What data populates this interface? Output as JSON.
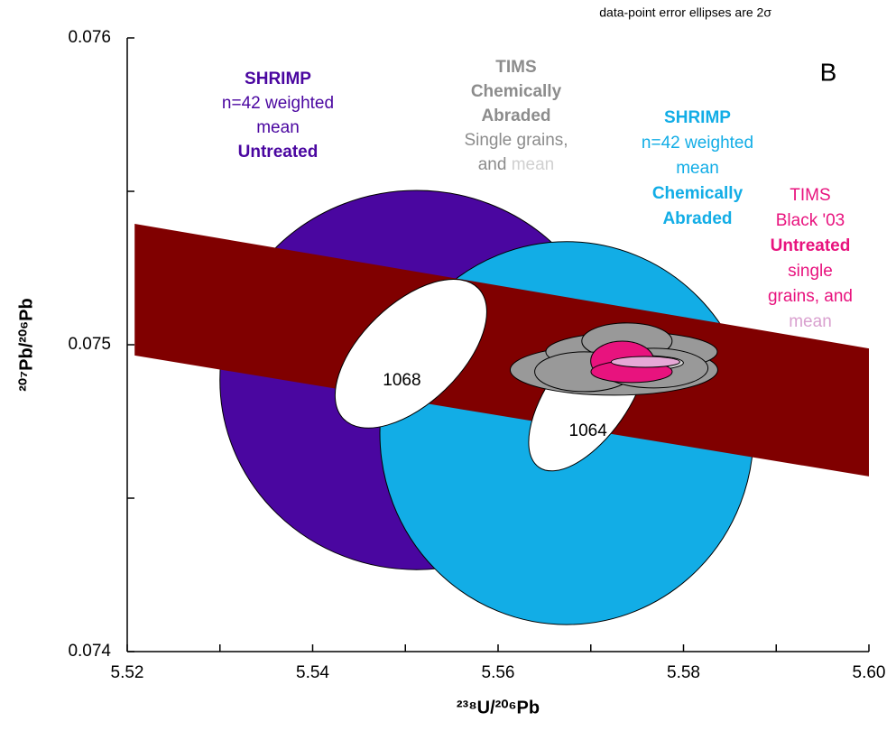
{
  "chart_data": {
    "type": "concordia",
    "note": "data-point error ellipses are 2σ",
    "panel": "B",
    "xlabel": "²³⁸U/²⁰⁶Pb",
    "ylabel": "²⁰⁷Pb/²⁰⁶Pb",
    "xlim": [
      5.52,
      5.6
    ],
    "ylim": [
      0.074,
      0.076
    ],
    "xticks": [
      5.52,
      5.54,
      5.56,
      5.58,
      {
        "value": 5.6,
        "label": "5.60"
      }
    ],
    "xminor_ticks": [
      5.53,
      5.55,
      5.57,
      5.59
    ],
    "yticks": [
      0.074,
      0.075,
      0.076
    ],
    "yminor_ticks": [
      0.0745,
      0.0755
    ],
    "band": {
      "color": "#800000",
      "x": [
        5.5208,
        5.6
      ],
      "upper": [
        0.075394,
        0.074988
      ],
      "lower": [
        0.074965,
        0.074571
      ]
    },
    "ellipses": [
      {
        "x": 5.5512,
        "y": 0.074885,
        "rx": 0.0212,
        "ry": 0.000618,
        "color": "#4a06a0"
      },
      {
        "x": 5.5674,
        "y": 0.074712,
        "rx": 0.02015,
        "ry": 0.000624,
        "color": "#12ade6"
      }
    ],
    "age_ellipses": [
      {
        "label": "1068",
        "x": 5.5506,
        "y": 0.074971,
        "rx": 0.01012,
        "ry": 0.000162,
        "angle": -44,
        "color": "#ffffff"
      },
      {
        "label": "1064",
        "x": 5.5697,
        "y": 0.07483,
        "rx": 0.00925,
        "ry": 0.000132,
        "angle": -55,
        "color": "#ffffff"
      }
    ],
    "grain_ellipses": [
      {
        "x": 5.5725,
        "y": 0.074918,
        "rx": 0.01119,
        "ry": 8.24e-05,
        "color": "#999999"
      },
      {
        "x": 5.5744,
        "y": 0.074977,
        "rx": 0.00925,
        "ry": 6.47e-05,
        "color": "#999999"
      },
      {
        "x": 5.5739,
        "y": 0.075012,
        "rx": 0.00487,
        "ry": 5.88e-05,
        "color": "#999999"
      },
      {
        "x": 5.5693,
        "y": 0.074912,
        "rx": 0.00535,
        "ry": 6.47e-05,
        "color": "#999999"
      },
      {
        "x": 5.5768,
        "y": 0.074924,
        "rx": 0.00584,
        "ry": 6.47e-05,
        "color": "#999999"
      },
      {
        "x": 5.5759,
        "y": 0.074941,
        "rx": 0.00409,
        "ry": 2.35e-05,
        "color": "#d0d0d0"
      },
      {
        "x": 5.5734,
        "y": 0.074947,
        "rx": 0.00341,
        "ry": 6.47e-05,
        "color": "#e8137e"
      },
      {
        "x": 5.5744,
        "y": 0.074912,
        "rx": 0.00438,
        "ry": 3.53e-05,
        "color": "#e8137e"
      },
      {
        "x": 5.5759,
        "y": 0.074944,
        "rx": 0.0037,
        "ry": 1.76e-05,
        "color": "#e6a8d6"
      }
    ],
    "annotations": [
      {
        "lines": [
          [
            {
              "text": "SHRIMP",
              "color": "#4a06a0",
              "bold": true
            }
          ],
          [
            {
              "text": "n=42 weighted",
              "color": "#4a06a0",
              "bold": false
            }
          ],
          [
            {
              "text": "mean",
              "color": "#4a06a0",
              "bold": false
            }
          ],
          [
            {
              "text": "Untreated",
              "color": "#4a06a0",
              "bold": true
            }
          ]
        ]
      },
      {
        "lines": [
          [
            {
              "text": "TIMS",
              "color": "#8c8c8c",
              "bold": true
            }
          ],
          [
            {
              "text": "Chemically",
              "color": "#8c8c8c",
              "bold": true
            }
          ],
          [
            {
              "text": "Abraded",
              "color": "#8c8c8c",
              "bold": true
            }
          ],
          [
            {
              "text": "Single grains,",
              "color": "#8c8c8c",
              "bold": false
            }
          ],
          [
            {
              "text": "and ",
              "color": "#8c8c8c",
              "bold": false
            },
            {
              "text": "mean",
              "color": "#d0d0d0",
              "bold": false
            }
          ]
        ]
      },
      {
        "lines": [
          [
            {
              "text": "SHRIMP",
              "color": "#12ade6",
              "bold": true
            }
          ],
          [
            {
              "text": "n=42 weighted",
              "color": "#12ade6",
              "bold": false
            }
          ],
          [
            {
              "text": "mean",
              "color": "#12ade6",
              "bold": false
            }
          ],
          [
            {
              "text": "Chemically",
              "color": "#12ade6",
              "bold": true
            }
          ],
          [
            {
              "text": "Abraded",
              "color": "#12ade6",
              "bold": true
            }
          ]
        ]
      },
      {
        "lines": [
          [
            {
              "text": "TIMS",
              "color": "#e8137e",
              "bold": false
            }
          ],
          [
            {
              "text": "Black '03",
              "color": "#e8137e",
              "bold": false
            }
          ],
          [
            {
              "text": "Untreated",
              "color": "#e8137e",
              "bold": true
            }
          ],
          [
            {
              "text": "single",
              "color": "#e8137e",
              "bold": false
            }
          ],
          [
            {
              "text": "grains, and",
              "color": "#e8137e",
              "bold": false
            }
          ],
          [
            {
              "text": "mean",
              "color": "#d9a0cf",
              "bold": false
            }
          ]
        ]
      }
    ]
  }
}
